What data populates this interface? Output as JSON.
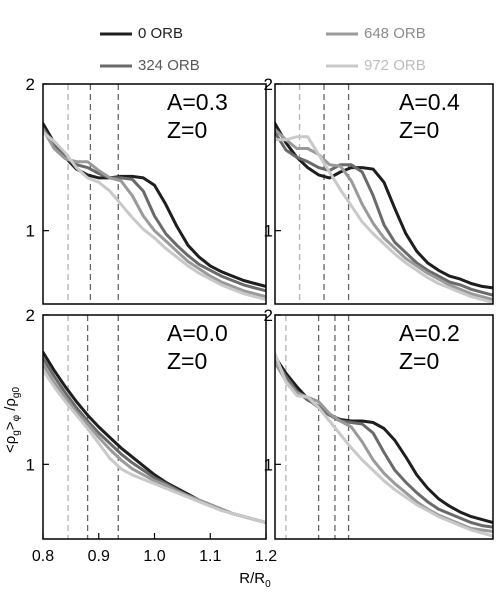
{
  "chart_data": [
    {
      "type": "line",
      "panel_title": [
        "A=0.3",
        "Z=0"
      ],
      "xlim": [
        0.8,
        1.2
      ],
      "ylim": [
        0.5,
        2.0
      ],
      "yticks": [
        1,
        2
      ],
      "x": [
        0.8,
        0.82,
        0.84,
        0.86,
        0.88,
        0.9,
        0.92,
        0.94,
        0.96,
        0.98,
        1.0,
        1.02,
        1.04,
        1.06,
        1.08,
        1.1,
        1.12,
        1.14,
        1.16,
        1.18,
        1.2
      ],
      "vlines": [
        0.845,
        0.885,
        0.935
      ],
      "series": [
        {
          "name": "0 ORB",
          "color": "#1e1e1e",
          "values": [
            1.73,
            1.6,
            1.5,
            1.42,
            1.38,
            1.36,
            1.36,
            1.37,
            1.37,
            1.36,
            1.31,
            1.18,
            1.03,
            0.9,
            0.82,
            0.76,
            0.72,
            0.69,
            0.66,
            0.64,
            0.62
          ]
        },
        {
          "name": "324 ORB",
          "color": "#6a6a6a",
          "values": [
            1.7,
            1.58,
            1.5,
            1.45,
            1.43,
            1.39,
            1.36,
            1.36,
            1.35,
            1.27,
            1.1,
            0.98,
            0.9,
            0.83,
            0.77,
            0.73,
            0.69,
            0.66,
            0.63,
            0.61,
            0.59
          ]
        },
        {
          "name": "648 ORB",
          "color": "#9a9a9a",
          "values": [
            1.69,
            1.56,
            1.49,
            1.47,
            1.47,
            1.41,
            1.36,
            1.34,
            1.24,
            1.1,
            1.0,
            0.93,
            0.86,
            0.79,
            0.74,
            0.69,
            0.65,
            0.62,
            0.59,
            0.57,
            0.55
          ]
        },
        {
          "name": "972 ORB",
          "color": "#c9c9c9",
          "values": [
            1.67,
            1.61,
            1.53,
            1.43,
            1.36,
            1.33,
            1.27,
            1.18,
            1.09,
            1.01,
            0.95,
            0.88,
            0.82,
            0.76,
            0.71,
            0.67,
            0.63,
            0.6,
            0.57,
            0.55,
            0.53
          ]
        }
      ]
    },
    {
      "type": "line",
      "panel_title": [
        "A=0.4",
        "Z=0"
      ],
      "xlim": [
        0.8,
        1.2
      ],
      "ylim": [
        0.5,
        2.0
      ],
      "yticks": [
        1,
        2
      ],
      "x": [
        0.8,
        0.82,
        0.84,
        0.86,
        0.88,
        0.9,
        0.92,
        0.94,
        0.96,
        0.98,
        1.0,
        1.02,
        1.04,
        1.06,
        1.08,
        1.1,
        1.12,
        1.14,
        1.16,
        1.18,
        1.2
      ],
      "vlines": [
        0.845,
        0.89,
        0.935
      ],
      "series": [
        {
          "name": "0 ORB",
          "color": "#1e1e1e",
          "values": [
            1.73,
            1.6,
            1.5,
            1.43,
            1.38,
            1.36,
            1.4,
            1.43,
            1.43,
            1.42,
            1.33,
            1.15,
            0.98,
            0.86,
            0.78,
            0.73,
            0.69,
            0.67,
            0.64,
            0.62,
            0.61
          ]
        },
        {
          "name": "324 ORB",
          "color": "#6a6a6a",
          "values": [
            1.67,
            1.55,
            1.5,
            1.47,
            1.43,
            1.41,
            1.45,
            1.45,
            1.4,
            1.24,
            1.04,
            0.92,
            0.85,
            0.78,
            0.73,
            0.69,
            0.65,
            0.63,
            0.6,
            0.58,
            0.56
          ]
        },
        {
          "name": "648 ORB",
          "color": "#9a9a9a",
          "values": [
            1.69,
            1.62,
            1.56,
            1.56,
            1.52,
            1.45,
            1.44,
            1.34,
            1.18,
            1.05,
            0.95,
            0.88,
            0.81,
            0.76,
            0.71,
            0.67,
            0.63,
            0.6,
            0.57,
            0.55,
            0.53
          ]
        },
        {
          "name": "972 ORB",
          "color": "#c9c9c9",
          "values": [
            1.62,
            1.62,
            1.64,
            1.64,
            1.52,
            1.4,
            1.28,
            1.17,
            1.06,
            0.98,
            0.91,
            0.84,
            0.78,
            0.73,
            0.68,
            0.64,
            0.61,
            0.58,
            0.55,
            0.53,
            0.51
          ]
        }
      ]
    },
    {
      "type": "line",
      "panel_title": [
        "A=0.0",
        "Z=0"
      ],
      "xlim": [
        0.8,
        1.2
      ],
      "ylim": [
        0.5,
        2.0
      ],
      "yticks": [
        1,
        2
      ],
      "xticks": [
        0.8,
        0.9,
        1.0,
        1.1,
        1.2
      ],
      "x": [
        0.8,
        0.82,
        0.84,
        0.86,
        0.88,
        0.9,
        0.92,
        0.94,
        0.96,
        0.98,
        1.0,
        1.02,
        1.04,
        1.06,
        1.08,
        1.1,
        1.12,
        1.14,
        1.16,
        1.18,
        1.2
      ],
      "vlines": [
        0.845,
        0.88,
        0.935
      ],
      "series": [
        {
          "name": "0 ORB",
          "color": "#1e1e1e",
          "values": [
            1.75,
            1.63,
            1.52,
            1.42,
            1.33,
            1.25,
            1.18,
            1.11,
            1.05,
            0.99,
            0.93,
            0.88,
            0.84,
            0.8,
            0.76,
            0.73,
            0.7,
            0.67,
            0.65,
            0.63,
            0.61
          ]
        },
        {
          "name": "324 ORB",
          "color": "#6a6a6a",
          "values": [
            1.71,
            1.59,
            1.48,
            1.38,
            1.29,
            1.21,
            1.14,
            1.07,
            1.01,
            0.96,
            0.91,
            0.87,
            0.83,
            0.79,
            0.76,
            0.73,
            0.7,
            0.67,
            0.65,
            0.63,
            0.61
          ]
        },
        {
          "name": "648 ORB",
          "color": "#9a9a9a",
          "values": [
            1.67,
            1.55,
            1.45,
            1.35,
            1.27,
            1.18,
            1.1,
            1.03,
            0.97,
            0.93,
            0.89,
            0.86,
            0.82,
            0.79,
            0.76,
            0.73,
            0.7,
            0.67,
            0.65,
            0.63,
            0.61
          ]
        },
        {
          "name": "972 ORB",
          "color": "#c9c9c9",
          "values": [
            1.63,
            1.52,
            1.42,
            1.33,
            1.24,
            1.14,
            1.04,
            0.97,
            0.93,
            0.9,
            0.87,
            0.84,
            0.81,
            0.78,
            0.75,
            0.72,
            0.69,
            0.67,
            0.65,
            0.63,
            0.61
          ]
        }
      ]
    },
    {
      "type": "line",
      "panel_title": [
        "A=0.2",
        "Z=0"
      ],
      "xlim": [
        0.8,
        1.2
      ],
      "ylim": [
        0.5,
        2.0
      ],
      "yticks": [
        1,
        2
      ],
      "x": [
        0.8,
        0.82,
        0.84,
        0.86,
        0.88,
        0.9,
        0.92,
        0.94,
        0.96,
        0.98,
        1.0,
        1.02,
        1.04,
        1.06,
        1.08,
        1.1,
        1.12,
        1.14,
        1.16,
        1.18,
        1.2
      ],
      "vlines": [
        0.82,
        0.88,
        0.91,
        0.935
      ],
      "series": [
        {
          "name": "0 ORB",
          "color": "#1e1e1e",
          "values": [
            1.72,
            1.61,
            1.52,
            1.44,
            1.38,
            1.33,
            1.3,
            1.29,
            1.29,
            1.28,
            1.24,
            1.16,
            1.05,
            0.93,
            0.84,
            0.77,
            0.72,
            0.68,
            0.65,
            0.63,
            0.61
          ]
        },
        {
          "name": "324 ORB",
          "color": "#6a6a6a",
          "values": [
            1.7,
            1.59,
            1.49,
            1.43,
            1.39,
            1.33,
            1.29,
            1.28,
            1.27,
            1.21,
            1.08,
            0.96,
            0.88,
            0.81,
            0.75,
            0.7,
            0.67,
            0.64,
            0.61,
            0.59,
            0.58
          ]
        },
        {
          "name": "648 ORB",
          "color": "#9a9a9a",
          "values": [
            1.68,
            1.56,
            1.48,
            1.45,
            1.42,
            1.34,
            1.29,
            1.25,
            1.15,
            1.03,
            0.94,
            0.87,
            0.81,
            0.75,
            0.7,
            0.66,
            0.63,
            0.6,
            0.57,
            0.56,
            0.55
          ]
        },
        {
          "name": "972 ORB",
          "color": "#c9c9c9",
          "values": [
            1.74,
            1.55,
            1.46,
            1.45,
            1.38,
            1.29,
            1.2,
            1.11,
            1.03,
            0.96,
            0.89,
            0.83,
            0.78,
            0.73,
            0.69,
            0.65,
            0.62,
            0.59,
            0.56,
            0.54,
            0.52
          ]
        }
      ]
    }
  ],
  "legend": [
    {
      "label": "0 ORB",
      "color": "#1e1e1e"
    },
    {
      "label": "324 ORB",
      "color": "#6a6a6a"
    },
    {
      "label": "648 ORB",
      "color": "#9a9a9a"
    },
    {
      "label": "972 ORB",
      "color": "#c9c9c9"
    }
  ],
  "axes": {
    "xlabel": "R/R",
    "xlabel_sub": "0",
    "ylabel_parts": {
      "open": "<ρ",
      "sub1": "g",
      "close": ">",
      "sub2": "φ",
      "slash": " /ρ",
      "sub3": "g0"
    }
  },
  "colors": {
    "axis": "#000000",
    "vline": "#666666",
    "vline_light": "#b3b3b3",
    "background": "#ffffff"
  }
}
